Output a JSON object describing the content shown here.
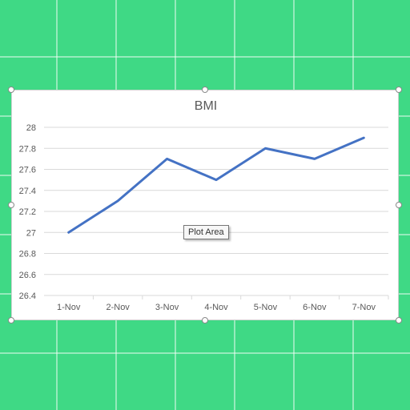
{
  "chart_data": {
    "type": "line",
    "title": "BMI",
    "categories": [
      "1-Nov",
      "2-Nov",
      "3-Nov",
      "4-Nov",
      "5-Nov",
      "6-Nov",
      "7-Nov"
    ],
    "series": [
      {
        "values": [
          27.0,
          27.3,
          27.7,
          27.5,
          27.8,
          27.7,
          27.9
        ],
        "color": "#4472c4"
      }
    ],
    "ylim": [
      26.4,
      28
    ],
    "yticks": [
      "26.4",
      "26.6",
      "26.8",
      "27",
      "27.2",
      "27.4",
      "27.6",
      "27.8",
      "28"
    ],
    "grid": true,
    "legend": "none"
  },
  "tooltip": {
    "label": "Plot Area"
  },
  "colors": {
    "sheet_background": "#3fd985",
    "gridline": "#d9d9d9",
    "line": "#4472c4"
  }
}
